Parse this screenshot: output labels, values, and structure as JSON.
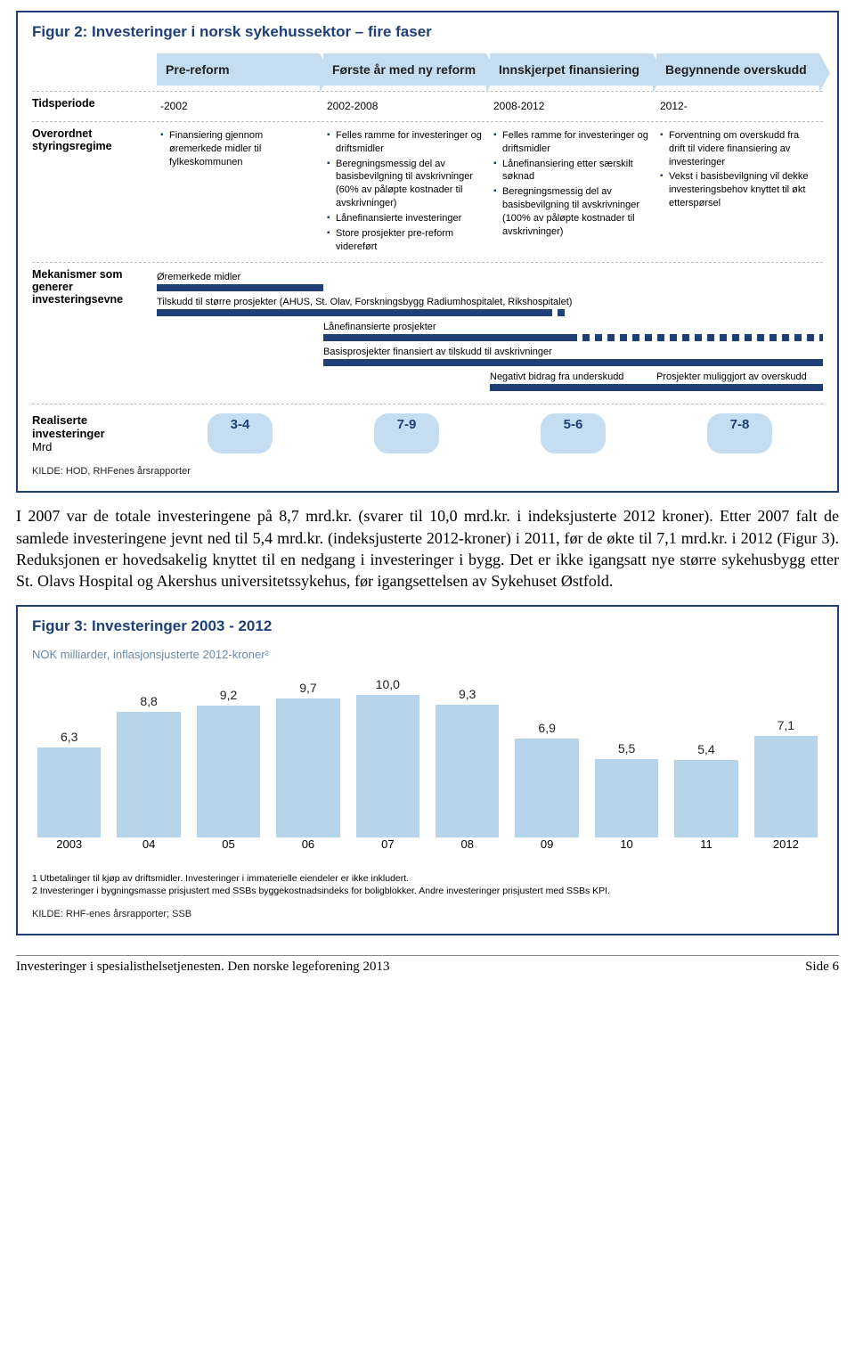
{
  "figure2": {
    "title": "Figur 2: Investeringer i norsk sykehussektor – fire faser",
    "phases": [
      "Pre-reform",
      "Første år med ny reform",
      "Innskjerpet finansiering",
      "Begynnende overskudd"
    ],
    "rows": {
      "tidsperiode": {
        "label": "Tidsperiode",
        "values": [
          "-2002",
          "2002-2008",
          "2008-2012",
          "2012-"
        ]
      },
      "overordnet": {
        "label": "Overordnet styringsregime",
        "cols": [
          [
            "Finansiering gjennom øremerkede midler til fylkeskommunen"
          ],
          [
            "Felles ramme for investeringer og driftsmidler",
            "Beregningsmessig del av basisbevilgning til avskrivninger (60% av påløpte kostnader til avskrivninger)",
            "Lånefinansierte investeringer",
            "Store prosjekter pre-reform videreført"
          ],
          [
            "Felles ramme for investeringer og driftsmidler",
            "Lånefinansiering etter særskilt søknad",
            "Beregningsmessig del av basisbevilgning til avskrivninger (100% av påløpte kostnader til avskrivninger)"
          ],
          [
            "Forventning om overskudd fra drift til videre finansiering av investeringer",
            "Vekst i basisbevilgning vil dekke investeringsbehov knyttet til økt etterspørsel"
          ]
        ]
      },
      "mekanismer": {
        "label": "Mekanismer som generer investeringsevne",
        "bars": [
          {
            "label": "Øremerkede midler",
            "start": 0,
            "end": 25,
            "dashed": false
          },
          {
            "label": "Tilskudd til større prosjekter (AHUS, St. Olav, Forskningsbygg Radiumhospitalet, Rikshospitalet)",
            "start": 0,
            "end": 62,
            "dashed_tail": 6
          },
          {
            "label": "Lånefinansierte prosjekter",
            "start": 25,
            "end": 100,
            "dashed": true,
            "dash_start": 62
          },
          {
            "label": "Basisprosjekter finansiert av tilskudd til avskrivninger",
            "start": 25,
            "end": 100,
            "dashed": false
          },
          {
            "split": true,
            "left_label": "Negativt bidrag fra underskudd",
            "right_label": "Prosjekter muliggjort av overskudd",
            "left_start": 50,
            "left_end": 75,
            "right_start": 75,
            "right_end": 100
          }
        ]
      },
      "realiserte": {
        "label": "Realiserte investeringer",
        "unit": "Mrd",
        "pills": [
          "3-4",
          "7-9",
          "5-6",
          "7-8"
        ]
      }
    },
    "source": "KILDE: HOD, RHFenes årsrapporter"
  },
  "body_paragraph": "I 2007 var de totale investeringene på 8,7 mrd.kr. (svarer til 10,0 mrd.kr. i indeksjusterte 2012 kroner). Etter 2007 falt de samlede investeringene jevnt ned til 5,4 mrd.kr. (indeksjusterte 2012-kroner) i 2011, før de økte til 7,1 mrd.kr. i 2012 (Figur 3). Reduksjonen er hovedsakelig knyttet til en nedgang i investeringer i bygg. Det er ikke igangsatt nye større sykehusbygg etter St. Olavs Hospital og Akershus universitetssykehus, før igangsettelsen av Sykehuset Østfold.",
  "figure3": {
    "title": "Figur 3: Investeringer 2003 - 2012",
    "subtitle": "NOK milliarder, inflasjonsjusterte 2012-kroner²",
    "bar_color": "#b6d4ea",
    "ymax": 10.0,
    "categories": [
      "2003",
      "04",
      "05",
      "06",
      "07",
      "08",
      "09",
      "10",
      "11",
      "2012"
    ],
    "values": [
      6.3,
      8.8,
      9.2,
      9.7,
      10.0,
      9.3,
      6.9,
      5.5,
      5.4,
      7.1
    ],
    "value_labels": [
      "6,3",
      "8,8",
      "9,2",
      "9,7",
      "10,0",
      "9,3",
      "6,9",
      "5,5",
      "5,4",
      "7,1"
    ],
    "footnotes": [
      "1 Utbetalinger til kjøp av driftsmidler. Investeringer i immaterielle eiendeler er ikke inkludert.",
      "2 Investeringer i bygningsmasse prisjustert med  SSBs byggekostnadsindeks for boligblokker. Andre investeringer prisjustert med SSBs KPI."
    ],
    "source": "KILDE: RHF-enes årsrapporter; SSB"
  },
  "footer": {
    "left": "Investeringer i spesialisthelsetjenesten. Den norske legeforening 2013",
    "right": "Side 6"
  }
}
